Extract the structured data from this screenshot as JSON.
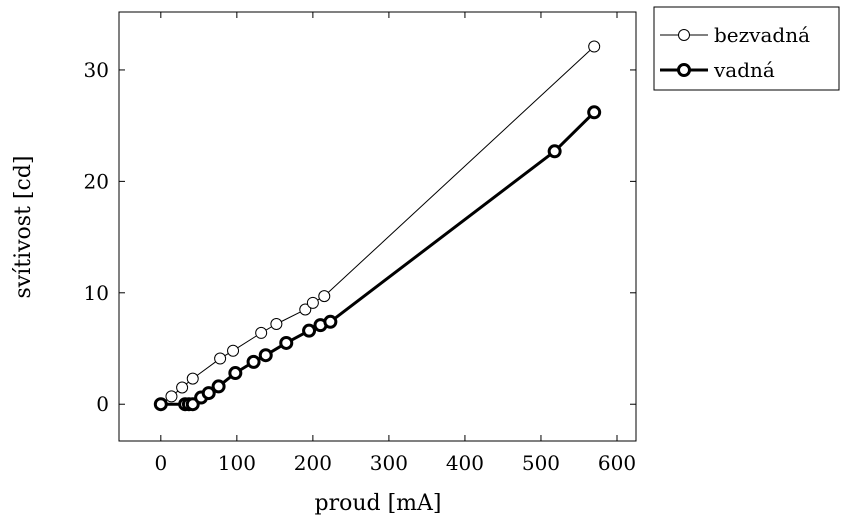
{
  "chart_data": {
    "type": "line",
    "title": "",
    "xlabel": "proud [mA]",
    "ylabel": "svítivost [cd]",
    "xlim": [
      -55,
      625
    ],
    "ylim": [
      -3.3,
      35.2
    ],
    "xticks": [
      0,
      100,
      200,
      300,
      400,
      500,
      600
    ],
    "yticks": [
      0,
      10,
      20,
      30
    ],
    "legend_position": "outside-right-top",
    "grid": false,
    "series": [
      {
        "name": "bezvadná",
        "style": "thin line, open circle markers",
        "color": "#000000",
        "points": [
          [
            0,
            0
          ],
          [
            14,
            0.7
          ],
          [
            28,
            1.5
          ],
          [
            42,
            2.3
          ],
          [
            78,
            4.1
          ],
          [
            95,
            4.8
          ],
          [
            132,
            6.4
          ],
          [
            152,
            7.2
          ],
          [
            190,
            8.5
          ],
          [
            200,
            9.1
          ],
          [
            215,
            9.7
          ],
          [
            570,
            32.1
          ]
        ]
      },
      {
        "name": "vadná",
        "style": "thick line, open circle markers",
        "color": "#000000",
        "points": [
          [
            0,
            0
          ],
          [
            32,
            0
          ],
          [
            37,
            0
          ],
          [
            42,
            0
          ],
          [
            53,
            0.6
          ],
          [
            63,
            1.0
          ],
          [
            76,
            1.6
          ],
          [
            98,
            2.8
          ],
          [
            122,
            3.8
          ],
          [
            138,
            4.4
          ],
          [
            165,
            5.5
          ],
          [
            195,
            6.6
          ],
          [
            210,
            7.1
          ],
          [
            223,
            7.4
          ],
          [
            518,
            22.7
          ],
          [
            570,
            26.2
          ]
        ]
      }
    ]
  }
}
